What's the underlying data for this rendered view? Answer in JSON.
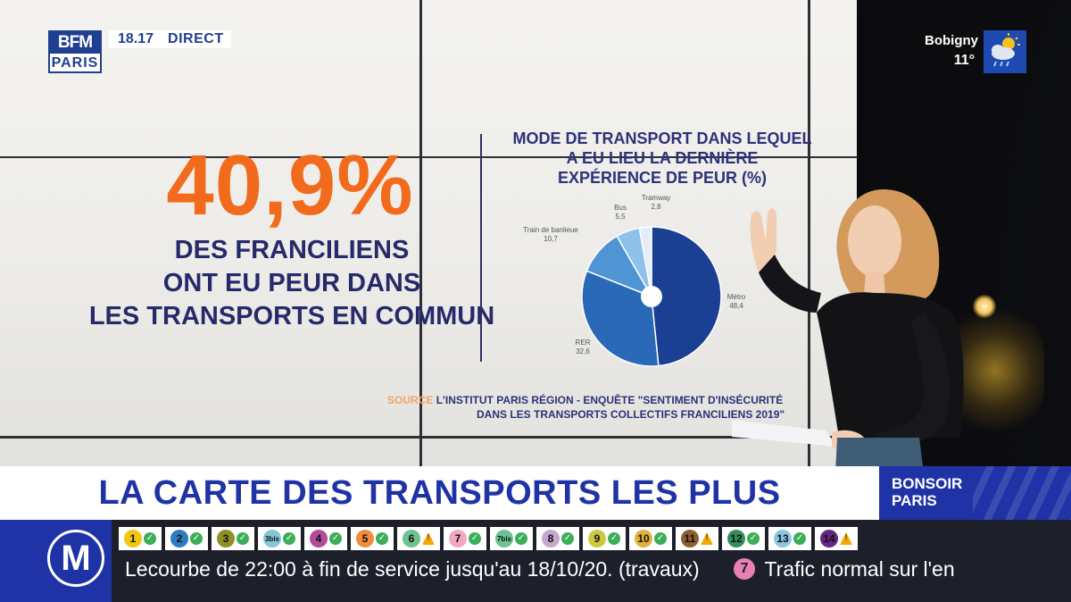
{
  "broadcast": {
    "logo_top": "BFM",
    "logo_bottom": "PARIS",
    "time": "18.17",
    "live_label": "DIRECT"
  },
  "weather": {
    "city": "Bobigny",
    "temperature": "11°",
    "icon": "cloud-sun-rain-icon"
  },
  "screen": {
    "stat_value": "40,9%",
    "stat_caption_lines": [
      "DES FRANCILIENS",
      "ONT EU PEUR DANS",
      "LES TRANSPORTS EN COMMUN"
    ],
    "source_keyword": "SOURCE",
    "source_line1": "L'INSTITUT PARIS RÉGION - ENQUÊTE \"SENTIMENT D'INSÉCURITÉ",
    "source_line2": "DANS LES TRANSPORTS COLLECTIFS FRANCILIENS 2019\""
  },
  "chart_data": {
    "type": "pie",
    "title_lines": [
      "MODE DE TRANSPORT DANS LEQUEL",
      "A EU LIEU LA DERNIÈRE",
      "EXPÉRIENCE DE PEUR (%)"
    ],
    "slices": [
      {
        "label": "Métro",
        "value": 48.4,
        "value_label": "48,4",
        "color": "#1b3f93"
      },
      {
        "label": "RER",
        "value": 32.6,
        "value_label": "32,6",
        "color": "#2a68b8"
      },
      {
        "label": "Train de banlieue",
        "value": 10.7,
        "value_label": "10,7",
        "color": "#4f95d4"
      },
      {
        "label": "Bus",
        "value": 5.5,
        "value_label": "5,5",
        "color": "#8ec2ea"
      },
      {
        "label": "Tramway",
        "value": 2.8,
        "value_label": "2,8",
        "color": "#e3eef9"
      }
    ]
  },
  "headline": {
    "text": "LA CARTE DES TRANSPORTS LES PLUS ANXIOGÈNES"
  },
  "program": {
    "line1": "BONSOIR",
    "line2": "PARIS"
  },
  "transit": {
    "metro_symbol": "M",
    "lines": [
      {
        "num": "1",
        "color": "#f2c511",
        "status": "ok"
      },
      {
        "num": "2",
        "color": "#2e7bc4",
        "status": "ok"
      },
      {
        "num": "3",
        "color": "#8f8f24",
        "status": "ok"
      },
      {
        "num": "3bis",
        "color": "#84c6d8",
        "status": "ok"
      },
      {
        "num": "4",
        "color": "#b44a9e",
        "status": "ok"
      },
      {
        "num": "5",
        "color": "#f28d3c",
        "status": "ok"
      },
      {
        "num": "6",
        "color": "#6ec191",
        "status": "warn"
      },
      {
        "num": "7",
        "color": "#f2a7c2",
        "status": "ok"
      },
      {
        "num": "7bis",
        "color": "#6ec191",
        "status": "ok"
      },
      {
        "num": "8",
        "color": "#c7a6d1",
        "status": "ok"
      },
      {
        "num": "9",
        "color": "#cdc83f",
        "status": "ok"
      },
      {
        "num": "10",
        "color": "#e2b13c",
        "status": "ok"
      },
      {
        "num": "11",
        "color": "#8e5e2f",
        "status": "warn"
      },
      {
        "num": "12",
        "color": "#328e5b",
        "status": "ok"
      },
      {
        "num": "13",
        "color": "#89c7e1",
        "status": "ok"
      },
      {
        "num": "14",
        "color": "#662483",
        "status": "warn"
      }
    ],
    "ticker_text": "Lecourbe de 22:00 à fin de service jusqu'au 18/10/20. (travaux)",
    "ticker_next_badge": "7",
    "ticker_next_text": "Trafic normal sur l'en"
  }
}
